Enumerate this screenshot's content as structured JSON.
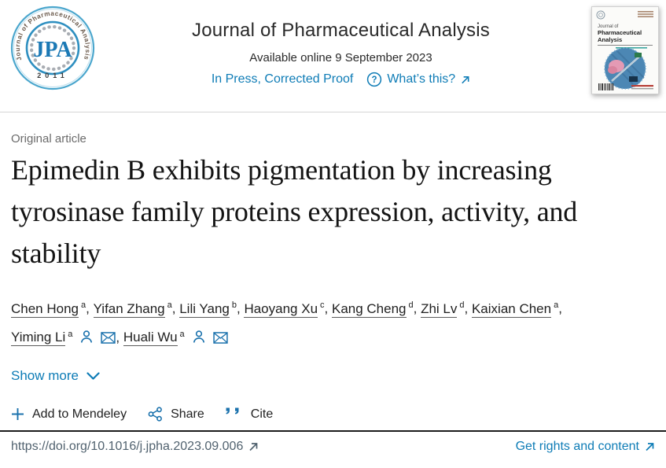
{
  "header": {
    "journal_title": "Journal of Pharmaceutical Analysis",
    "available_online": "Available online 9 September 2023",
    "in_press_label": "In Press, Corrected Proof",
    "whats_this_label": "What’s this?",
    "logo": {
      "ring_text": "Journal of Pharmaceutical Analysis",
      "acronym": "JPA",
      "year": "2011"
    },
    "cover": {
      "line1": "Journal of",
      "line2": "Pharmaceutical",
      "line3": "Analysis"
    }
  },
  "article": {
    "type_label": "Original article",
    "title": "Epimedin B exhibits pigmentation by increasing tyrosinase family proteins expression, activity, and stability",
    "authors": [
      {
        "name": "Chen Hong",
        "sup": "a",
        "icons": false
      },
      {
        "name": "Yifan Zhang",
        "sup": "a",
        "icons": false
      },
      {
        "name": "Lili Yang",
        "sup": "b",
        "icons": false
      },
      {
        "name": "Haoyang Xu",
        "sup": "c",
        "icons": false
      },
      {
        "name": "Kang Cheng",
        "sup": "d",
        "icons": false
      },
      {
        "name": "Zhi Lv",
        "sup": "d",
        "icons": false
      },
      {
        "name": "Kaixian Chen",
        "sup": "a",
        "icons": false
      },
      {
        "name": "Yiming Li",
        "sup": "a",
        "icons": true
      },
      {
        "name": "Huali Wu",
        "sup": "a",
        "icons": true
      }
    ],
    "show_more_label": "Show more"
  },
  "actions": {
    "mendeley_label": "Add to Mendeley",
    "share_label": "Share",
    "cite_label": "Cite"
  },
  "footer": {
    "doi": "https://doi.org/10.1016/j.jpha.2023.09.006",
    "rights_label": "Get rights and content"
  },
  "colors": {
    "link_blue": "#0e7cb6",
    "icon_blue": "#1b72ad",
    "text_dark": "#212121",
    "muted_gray": "#6b6b6b",
    "doi_gray": "#51626f"
  }
}
